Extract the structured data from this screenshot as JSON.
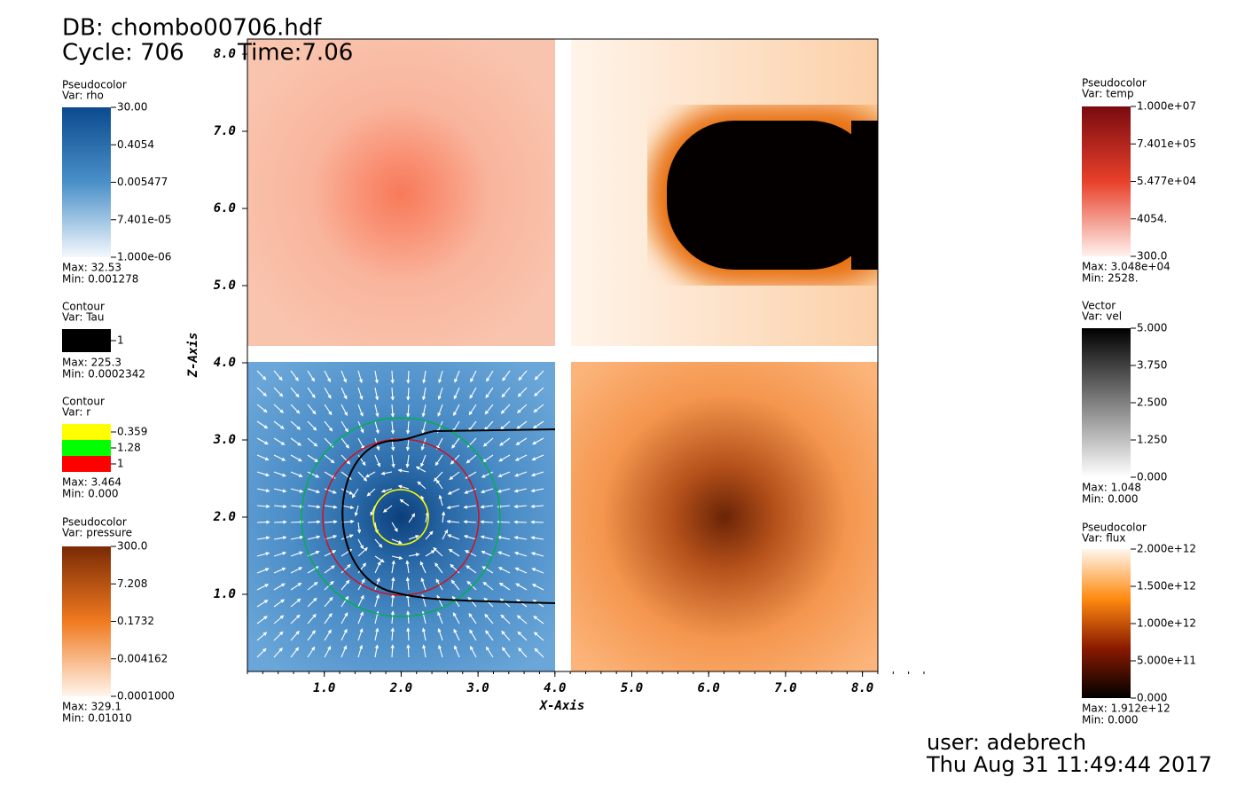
{
  "header": {
    "db": "DB: chombo00706.hdf",
    "cycle": "Cycle: 706",
    "time": "Time:7.06"
  },
  "axes": {
    "x_label": "X-Axis",
    "y_label": "Z-Axis",
    "x_ticks": [
      "1.0",
      "2.0",
      "3.0",
      "4.0",
      "5.0",
      "6.0",
      "7.0",
      "8.0"
    ],
    "y_ticks": [
      "1.0",
      "2.0",
      "3.0",
      "4.0",
      "5.0",
      "6.0",
      "7.0",
      "8.0"
    ]
  },
  "legends": [
    {
      "kind": "Pseudocolor",
      "var": "Var: rho",
      "labels": [
        "30.00",
        "0.4054",
        "0.005477",
        "7.401e-05",
        "1.000e-06"
      ],
      "max": "Max:  32.53",
      "min": "Min:  0.001278",
      "colors": [
        "#0b4a8f",
        "#4a90c8",
        "#f4f8fd"
      ]
    },
    {
      "kind": "Contour",
      "var": "Var: Tau",
      "labels": [
        "1"
      ],
      "max": "Max:  225.3",
      "min": "Min:  0.0002342",
      "colors": [
        "#000000"
      ],
      "discrete": true
    },
    {
      "kind": "Contour",
      "var": "Var: r",
      "labels": [
        "0.359",
        "1.28",
        "1"
      ],
      "max": "Max:  3.464",
      "min": "Min:  0.000",
      "colors": [
        "#ffff00",
        "#00ff00",
        "#ff0000"
      ],
      "discrete": true
    },
    {
      "kind": "Pseudocolor",
      "var": "Var: pressure",
      "labels": [
        "300.0",
        "7.208",
        "0.1732",
        "0.004162",
        "0.0001000"
      ],
      "max": "Max:  329.1",
      "min": "Min:  0.01010",
      "colors": [
        "#7a2a05",
        "#f07a20",
        "#fff5ec"
      ]
    },
    {
      "kind": "Pseudocolor",
      "var": "Var: temp",
      "labels": [
        "1.000e+07",
        "7.401e+05",
        "5.477e+04",
        "4054.",
        "300.0"
      ],
      "max": "Max:  3.048e+04",
      "min": "Min:  2528.",
      "colors": [
        "#7a0a10",
        "#e8402a",
        "#fff2ee"
      ]
    },
    {
      "kind": "Vector",
      "var": "Var: vel",
      "labels": [
        "5.000",
        "3.750",
        "2.500",
        "1.250",
        "0.000"
      ],
      "max": "Max:  1.048",
      "min": "Min:  0.000",
      "colors": [
        "#000000",
        "#808080",
        "#ffffff"
      ]
    },
    {
      "kind": "Pseudocolor",
      "var": "Var: flux",
      "labels": [
        "2.000e+12",
        "1.500e+12",
        "1.000e+12",
        "5.000e+11",
        "0.000"
      ],
      "max": "Max:  1.912e+12",
      "min": "Min:  0.000",
      "colors": [
        "#fff6ee",
        "#ff8a10",
        "#8a1a00",
        "#000000"
      ]
    }
  ],
  "footer": {
    "user": "user: adebrech",
    "date": "Thu Aug 31 11:49:44 2017"
  }
}
